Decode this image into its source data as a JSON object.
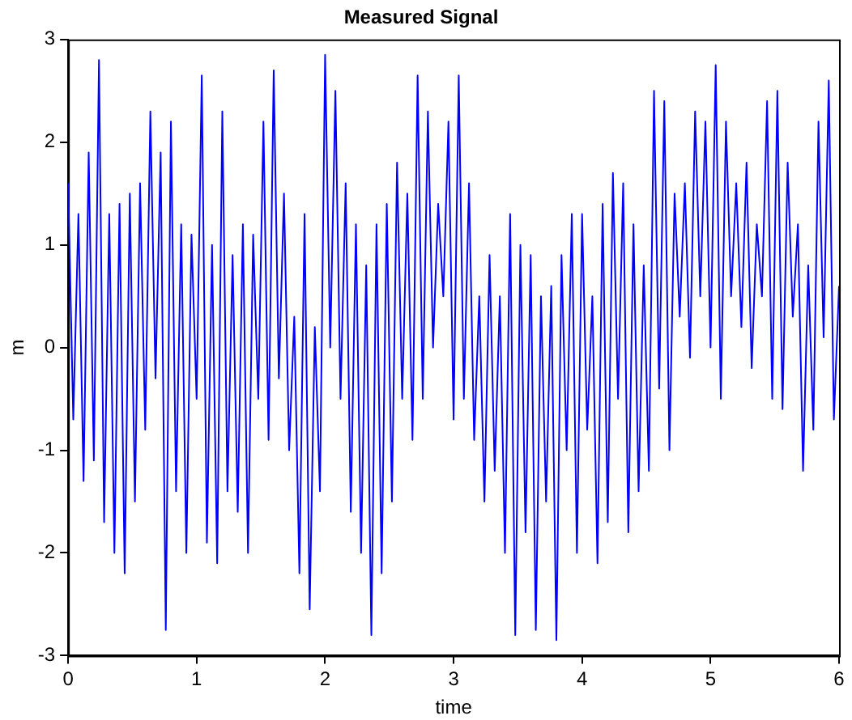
{
  "chart_data": {
    "type": "line",
    "title": "Measured Signal",
    "xlabel": "time",
    "ylabel": "m",
    "xlim": [
      0,
      6
    ],
    "xticks": [
      0,
      1,
      2,
      3,
      4,
      5,
      6
    ],
    "ylim": [
      -3,
      3
    ],
    "yticks": [
      -3,
      -2,
      -1,
      0,
      1,
      2,
      3
    ],
    "grid": false,
    "legend": false,
    "marker": "none",
    "line_style": "solid",
    "series": [
      {
        "color": "#0000ff",
        "x": [
          0,
          0.04,
          0.08,
          0.12,
          0.16,
          0.2,
          0.24,
          0.28,
          0.32,
          0.36,
          0.4,
          0.44,
          0.48,
          0.52,
          0.56,
          0.6,
          0.64,
          0.68,
          0.72,
          0.76,
          0.8,
          0.84,
          0.88,
          0.92,
          0.96,
          1,
          1.04,
          1.08,
          1.12,
          1.16,
          1.2,
          1.24,
          1.28,
          1.32,
          1.36,
          1.4,
          1.44,
          1.48,
          1.52,
          1.56,
          1.6,
          1.64,
          1.68,
          1.72,
          1.76,
          1.8,
          1.84,
          1.88,
          1.92,
          1.96,
          2,
          2.04,
          2.08,
          2.12,
          2.16,
          2.2,
          2.24,
          2.28,
          2.32,
          2.36,
          2.4,
          2.44,
          2.48,
          2.52,
          2.56,
          2.6,
          2.64,
          2.68,
          2.72,
          2.76,
          2.8,
          2.84,
          2.88,
          2.92,
          2.96,
          3,
          3.04,
          3.08,
          3.12,
          3.16,
          3.2,
          3.24,
          3.28,
          3.32,
          3.36,
          3.4,
          3.44,
          3.48,
          3.52,
          3.56,
          3.6,
          3.64,
          3.68,
          3.72,
          3.76,
          3.8,
          3.84,
          3.88,
          3.92,
          3.96,
          4,
          4.04,
          4.08,
          4.12,
          4.16,
          4.2,
          4.24,
          4.28,
          4.32,
          4.36,
          4.4,
          4.44,
          4.48,
          4.52,
          4.56,
          4.6,
          4.64,
          4.68,
          4.72,
          4.76,
          4.8,
          4.84,
          4.88,
          4.92,
          4.96,
          5,
          5.04,
          5.08,
          5.12,
          5.16,
          5.2,
          5.24,
          5.28,
          5.32,
          5.36,
          5.4,
          5.44,
          5.48,
          5.52,
          5.56,
          5.6,
          5.64,
          5.68,
          5.72,
          5.76,
          5.8,
          5.84,
          5.88,
          5.92,
          5.96,
          6
        ],
        "values": [
          1.6,
          -0.7,
          1.3,
          -1.3,
          1.9,
          -1.1,
          2.8,
          -1.7,
          1.3,
          -2.0,
          1.4,
          -2.2,
          1.5,
          -1.5,
          1.6,
          -0.8,
          2.3,
          -0.3,
          1.9,
          -2.75,
          2.2,
          -1.4,
          1.2,
          -2.0,
          1.1,
          -0.5,
          2.65,
          -1.9,
          1.0,
          -2.1,
          2.3,
          -1.4,
          0.9,
          -1.6,
          1.2,
          -2.0,
          1.1,
          -0.5,
          2.2,
          -0.9,
          2.7,
          -0.3,
          1.5,
          -1.0,
          0.3,
          -2.2,
          1.3,
          -2.55,
          0.2,
          -1.4,
          2.85,
          0.0,
          2.5,
          -0.5,
          1.6,
          -1.6,
          1.2,
          -2.0,
          0.8,
          -2.8,
          1.2,
          -2.2,
          1.4,
          -1.5,
          1.8,
          -0.5,
          1.5,
          -0.9,
          2.65,
          -0.5,
          2.3,
          0.0,
          1.4,
          0.5,
          2.2,
          -0.7,
          2.65,
          -0.5,
          1.6,
          -0.9,
          0.5,
          -1.5,
          0.9,
          -1.2,
          0.5,
          -2.0,
          1.3,
          -2.8,
          1.0,
          -1.8,
          0.9,
          -2.75,
          0.5,
          -1.5,
          0.6,
          -2.85,
          0.9,
          -1.0,
          1.3,
          -2.0,
          1.3,
          -0.8,
          0.5,
          -2.1,
          1.4,
          -1.7,
          1.7,
          -0.5,
          1.6,
          -1.8,
          1.2,
          -1.4,
          0.8,
          -1.2,
          2.5,
          -0.4,
          2.4,
          -1.0,
          1.5,
          0.3,
          1.6,
          -0.1,
          2.3,
          0.5,
          2.2,
          0.0,
          2.75,
          -0.5,
          2.2,
          0.5,
          1.6,
          0.2,
          1.8,
          -0.2,
          1.2,
          0.5,
          2.4,
          -0.5,
          2.5,
          -0.6,
          1.8,
          0.3,
          1.2,
          -1.2,
          0.8,
          -0.8,
          2.2,
          0.1,
          2.6,
          -0.7,
          0.6
        ]
      }
    ]
  }
}
